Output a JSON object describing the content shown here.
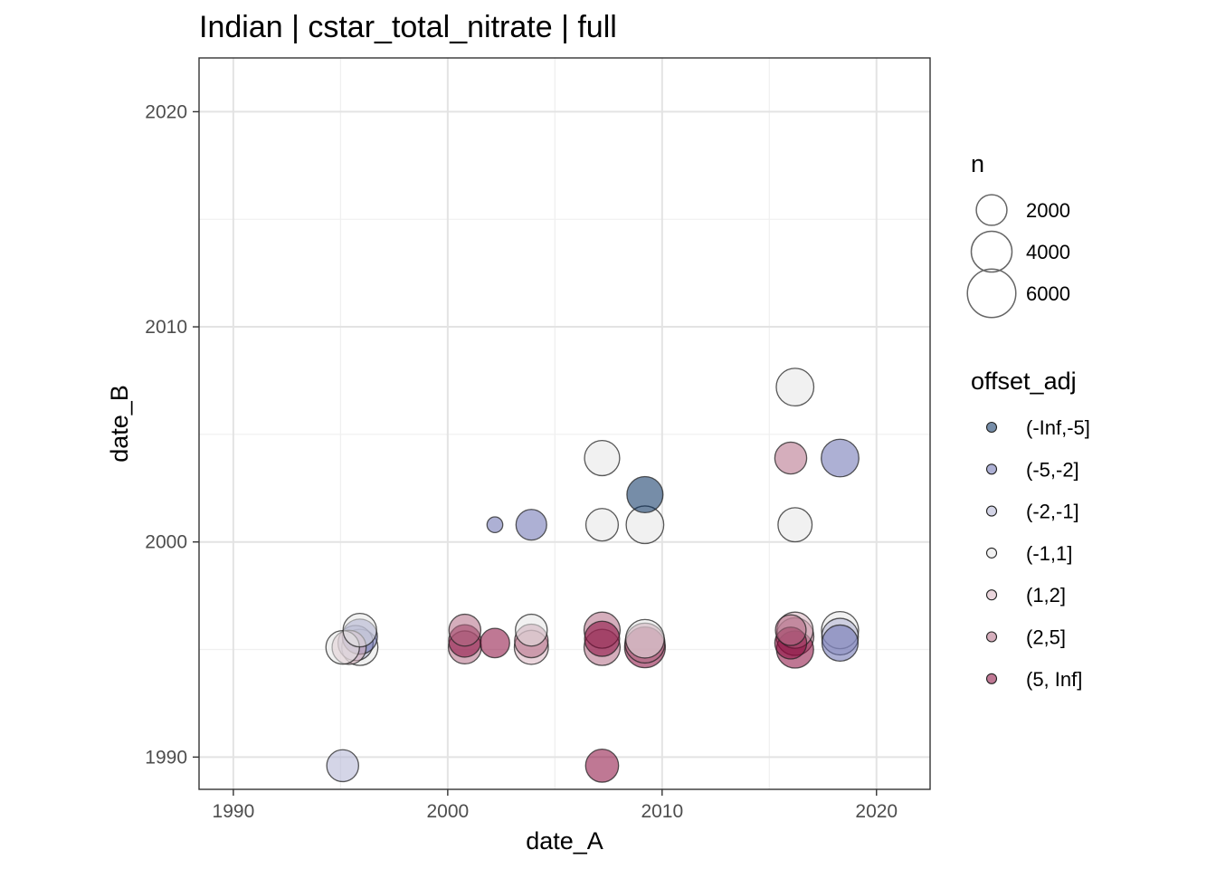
{
  "chart_data": {
    "type": "scatter",
    "title": "Indian | cstar_total_nitrate | full",
    "xlabel": "date_A",
    "ylabel": "date_B",
    "xlim": [
      1988.4,
      2022.5
    ],
    "ylim": [
      1988.5,
      2022.5
    ],
    "x_ticks": [
      1990,
      2000,
      2010,
      2020
    ],
    "y_ticks": [
      1990,
      2000,
      2010,
      2020
    ],
    "x_tick_labels": [
      "1990",
      "2000",
      "2010",
      "2020"
    ],
    "y_tick_labels": [
      "1990",
      "2000",
      "2010",
      "2020"
    ],
    "grid": true,
    "point_opacity": 0.55,
    "point_outline": "#222222",
    "size_legend": {
      "title": "n",
      "items": [
        {
          "label": "2000",
          "value": 2000
        },
        {
          "label": "4000",
          "value": 4000
        },
        {
          "label": "6000",
          "value": 6000
        }
      ]
    },
    "color_legend": {
      "title": "offset_adj",
      "placement": "right",
      "items": [
        {
          "label": "(-Inf,-5]",
          "color": "#053061"
        },
        {
          "label": "(-5,-2]",
          "color": "#6a6fb0"
        },
        {
          "label": "(-2,-1]",
          "color": "#b0b3d3"
        },
        {
          "label": "(-1,1]",
          "color": "#e6e6e6"
        },
        {
          "label": "(1,2]",
          "color": "#d8b3c0"
        },
        {
          "label": "(2,5]",
          "color": "#b26b85"
        },
        {
          "label": "(5, Inf]",
          "color": "#8b0a3d"
        }
      ]
    },
    "points": [
      {
        "x": 1995.1,
        "y": 1989.6,
        "n": 2200,
        "cls": 2
      },
      {
        "x": 1995.1,
        "y": 1995.1,
        "n": 2500,
        "cls": 3
      },
      {
        "x": 1995.4,
        "y": 1995.1,
        "n": 2600,
        "cls": 4
      },
      {
        "x": 1995.7,
        "y": 1995.3,
        "n": 2800,
        "cls": 2
      },
      {
        "x": 1995.9,
        "y": 1995.1,
        "n": 3000,
        "cls": 3
      },
      {
        "x": 1995.9,
        "y": 1995.6,
        "n": 2800,
        "cls": 1
      },
      {
        "x": 1995.9,
        "y": 1995.9,
        "n": 2500,
        "cls": 3
      },
      {
        "x": 2000.8,
        "y": 1995.1,
        "n": 2400,
        "cls": 5
      },
      {
        "x": 2000.8,
        "y": 1995.4,
        "n": 2300,
        "cls": 6
      },
      {
        "x": 2000.8,
        "y": 1995.9,
        "n": 2200,
        "cls": 5
      },
      {
        "x": 2002.2,
        "y": 1995.3,
        "n": 1800,
        "cls": 6
      },
      {
        "x": 2002.2,
        "y": 2000.8,
        "n": 300,
        "cls": 1
      },
      {
        "x": 2003.9,
        "y": 1995.1,
        "n": 2600,
        "cls": 4
      },
      {
        "x": 2003.9,
        "y": 1995.4,
        "n": 2500,
        "cls": 5
      },
      {
        "x": 2003.9,
        "y": 1995.9,
        "n": 2200,
        "cls": 3
      },
      {
        "x": 2003.9,
        "y": 2000.8,
        "n": 2000,
        "cls": 1
      },
      {
        "x": 2007.2,
        "y": 1989.6,
        "n": 2400,
        "cls": 6
      },
      {
        "x": 2007.2,
        "y": 1995.1,
        "n": 3000,
        "cls": 5
      },
      {
        "x": 2007.2,
        "y": 1995.5,
        "n": 2800,
        "cls": 6
      },
      {
        "x": 2007.2,
        "y": 1995.9,
        "n": 3000,
        "cls": 5
      },
      {
        "x": 2007.2,
        "y": 2000.8,
        "n": 2300,
        "cls": 3
      },
      {
        "x": 2007.2,
        "y": 2003.9,
        "n": 2800,
        "cls": 3
      },
      {
        "x": 2009.2,
        "y": 1995.1,
        "n": 4000,
        "cls": 6
      },
      {
        "x": 2009.2,
        "y": 1995.3,
        "n": 3800,
        "cls": 5
      },
      {
        "x": 2009.2,
        "y": 1995.5,
        "n": 3500,
        "cls": 3
      },
      {
        "x": 2009.2,
        "y": 2000.8,
        "n": 3300,
        "cls": 3
      },
      {
        "x": 2009.2,
        "y": 2002.2,
        "n": 3000,
        "cls": 0
      },
      {
        "x": 2016.0,
        "y": 1995.3,
        "n": 2200,
        "cls": 6
      },
      {
        "x": 2016.0,
        "y": 1995.9,
        "n": 2000,
        "cls": 5
      },
      {
        "x": 2016.0,
        "y": 2003.9,
        "n": 2200,
        "cls": 5
      },
      {
        "x": 2016.2,
        "y": 1995.0,
        "n": 3200,
        "cls": 6
      },
      {
        "x": 2016.2,
        "y": 1995.6,
        "n": 3300,
        "cls": 5
      },
      {
        "x": 2016.2,
        "y": 1995.9,
        "n": 3000,
        "cls": 4
      },
      {
        "x": 2016.2,
        "y": 2000.8,
        "n": 2600,
        "cls": 3
      },
      {
        "x": 2016.2,
        "y": 2007.2,
        "n": 3300,
        "cls": 3
      },
      {
        "x": 2018.3,
        "y": 1995.3,
        "n": 3000,
        "cls": 1
      },
      {
        "x": 2018.3,
        "y": 1995.6,
        "n": 3100,
        "cls": 2
      },
      {
        "x": 2018.3,
        "y": 1995.9,
        "n": 3200,
        "cls": 3
      },
      {
        "x": 2018.3,
        "y": 2003.9,
        "n": 3300,
        "cls": 1
      }
    ]
  }
}
